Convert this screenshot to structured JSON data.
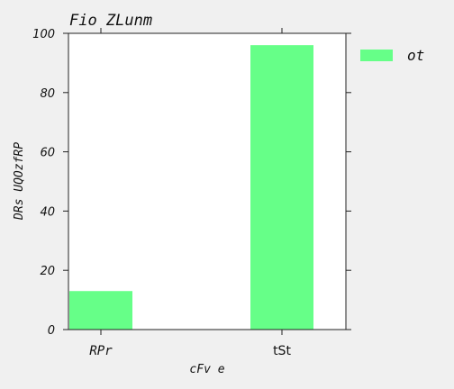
{
  "chart_data": {
    "type": "bar",
    "title": "Fio ZLunm",
    "xlabel": "cFv e",
    "ylabel": "DRs UQOzfRP",
    "categories": [
      "RPr",
      "tSt"
    ],
    "series": [
      {
        "name": "ot",
        "values": [
          13,
          96
        ],
        "color": "#66ff88"
      }
    ],
    "ylim": [
      0,
      100
    ],
    "yticks": [
      0,
      20,
      40,
      60,
      80,
      100
    ],
    "grid": false,
    "legend_position": "outside-right"
  }
}
